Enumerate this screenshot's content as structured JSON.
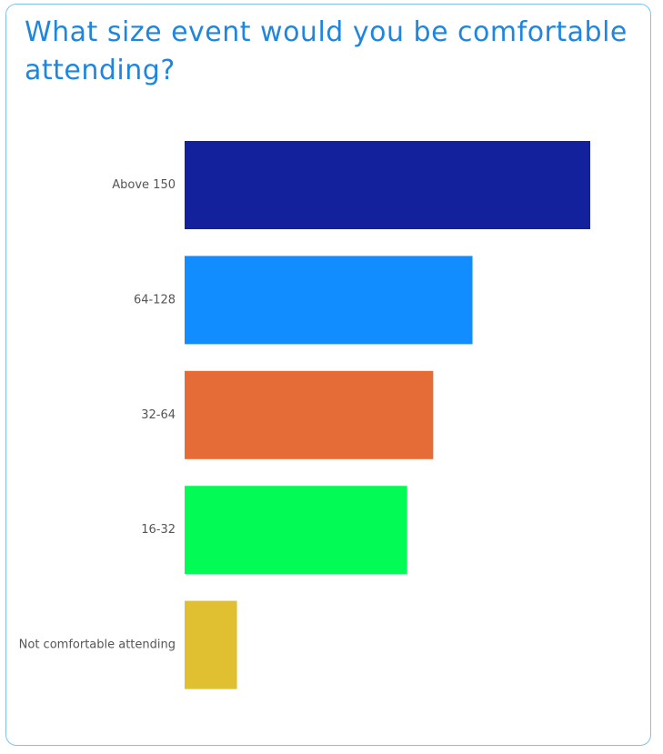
{
  "chart_data": {
    "type": "bar",
    "orientation": "horizontal",
    "title": "What size event would you be comfortable attending?",
    "categories": [
      "Above 150",
      "64-128",
      "32-64",
      "16-32",
      "Not comfortable attending"
    ],
    "values": [
      31,
      22,
      19,
      17,
      4
    ],
    "colors": [
      "#13229c",
      "#118dff",
      "#e66c37",
      "#03fb55",
      "#e0c031"
    ]
  }
}
